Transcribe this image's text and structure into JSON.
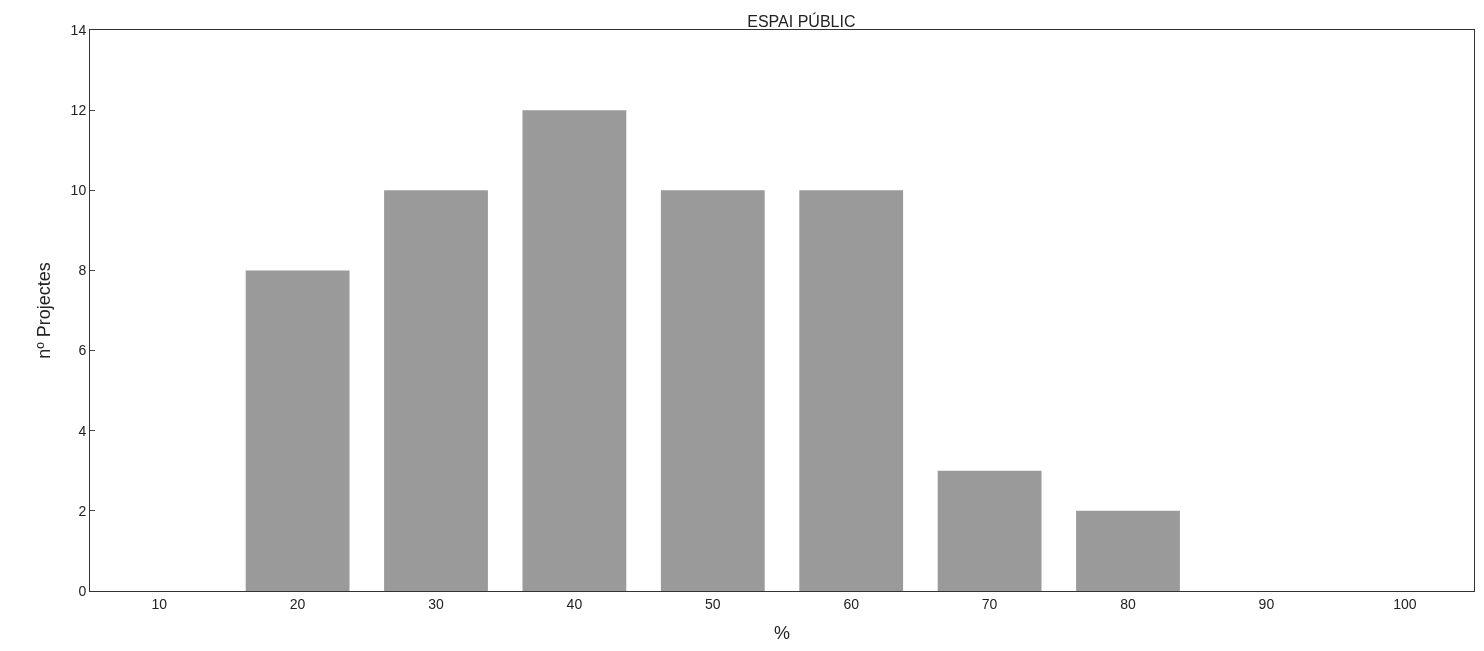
{
  "chart_data": {
    "type": "bar",
    "title": "ESPAI PÚBLIC",
    "xlabel": "%",
    "ylabel": "nº Projectes",
    "categories": [
      "10",
      "20",
      "30",
      "40",
      "50",
      "60",
      "70",
      "80",
      "90",
      "100"
    ],
    "values": [
      0,
      8,
      10,
      12,
      10,
      10,
      3,
      2,
      0,
      0
    ],
    "color": "#9a9a9a",
    "ylim": [
      0,
      14
    ],
    "yticks": [
      0,
      2,
      4,
      6,
      8,
      10,
      12,
      14
    ]
  }
}
